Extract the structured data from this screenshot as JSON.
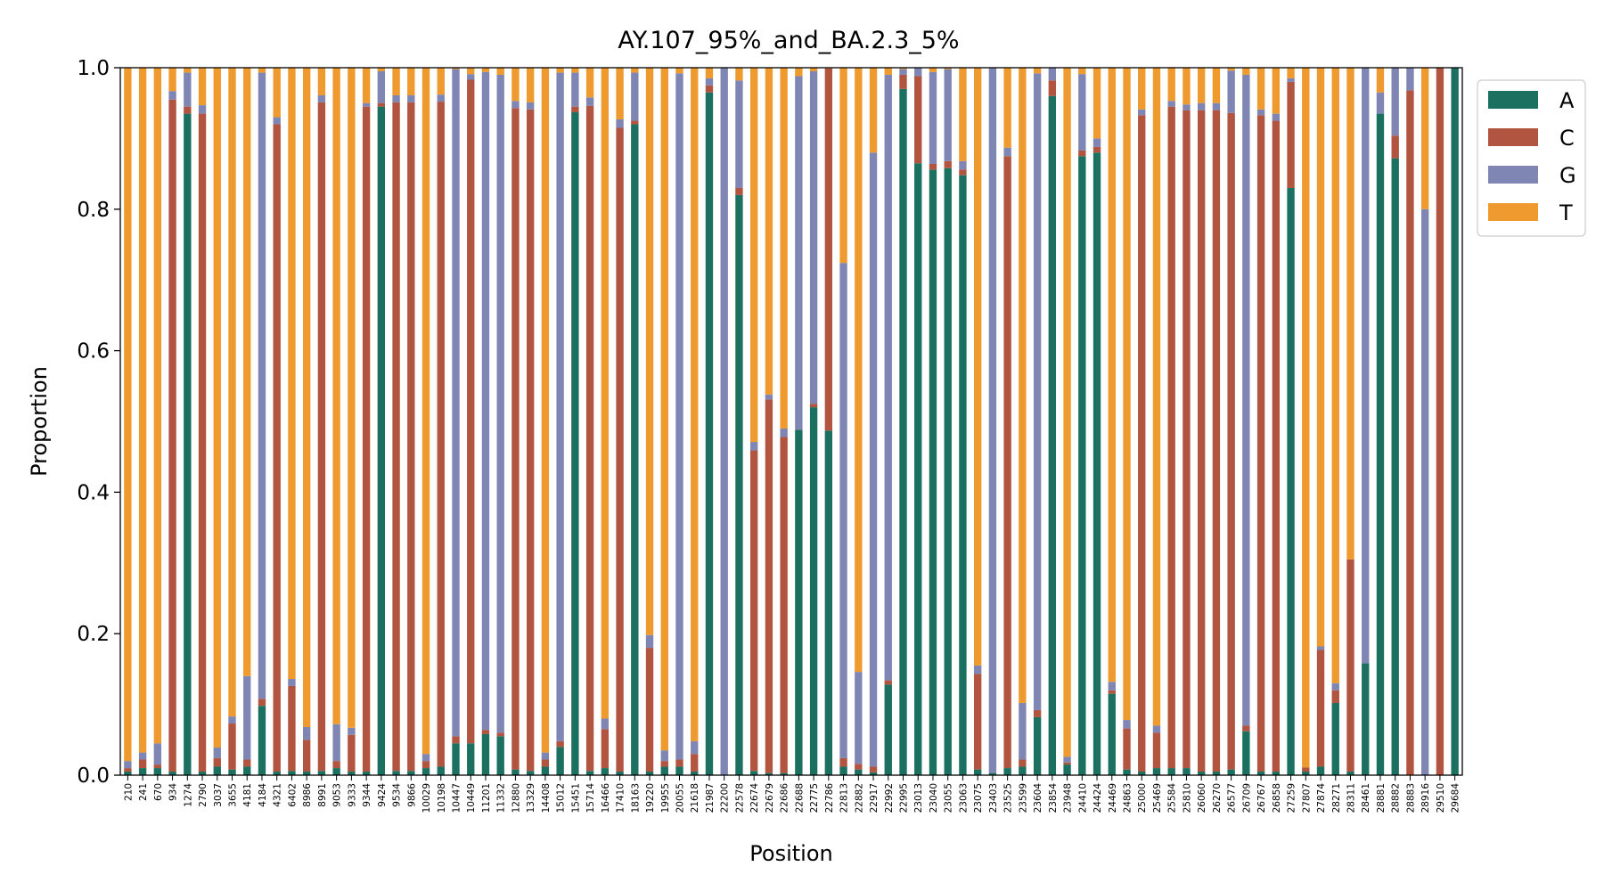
{
  "chart_data": {
    "type": "bar",
    "stacked": true,
    "title": "AY.107_95%_and_BA.2.3_5%",
    "xlabel": "Position",
    "ylabel": "Proportion",
    "ylim": [
      0,
      1
    ],
    "yticks": [
      "0.0",
      "0.2",
      "0.4",
      "0.6",
      "0.8",
      "1.0"
    ],
    "legend_position": "outside-top-right",
    "grid": false,
    "categories": [
      "210",
      "241",
      "670",
      "934",
      "1274",
      "2790",
      "3037",
      "3655",
      "4181",
      "4184",
      "4321",
      "6402",
      "8986",
      "8991",
      "9053",
      "9333",
      "9344",
      "9424",
      "9534",
      "9866",
      "10029",
      "10198",
      "10447",
      "10449",
      "11201",
      "11332",
      "12880",
      "13329",
      "14408",
      "15012",
      "15451",
      "15714",
      "16466",
      "17410",
      "18163",
      "19220",
      "19955",
      "20055",
      "21618",
      "21987",
      "22200",
      "22578",
      "22674",
      "22679",
      "22686",
      "22688",
      "22775",
      "22786",
      "22813",
      "22882",
      "22917",
      "22992",
      "22995",
      "23013",
      "23040",
      "23055",
      "23063",
      "23075",
      "23403",
      "23525",
      "23599",
      "23604",
      "23854",
      "23948",
      "24410",
      "24424",
      "24469",
      "24863",
      "25000",
      "25469",
      "25584",
      "25810",
      "26060",
      "26270",
      "26577",
      "26709",
      "26767",
      "26858",
      "27259",
      "27807",
      "27874",
      "28271",
      "28311",
      "28461",
      "28881",
      "28882",
      "28883",
      "28916",
      "29510",
      "29684"
    ],
    "series": [
      {
        "name": "A",
        "color": "#1b7060",
        "values": [
          0.005,
          0.01,
          0.01,
          0.005,
          0.935,
          0.005,
          0.012,
          0.008,
          0.012,
          0.098,
          0.005,
          0.006,
          0.005,
          0.006,
          0.01,
          0.005,
          0.005,
          0.945,
          0.006,
          0.006,
          0.01,
          0.012,
          0.045,
          0.045,
          0.058,
          0.055,
          0.008,
          0.006,
          0.012,
          0.04,
          0.937,
          0.006,
          0.01,
          0.005,
          0.92,
          0.005,
          0.012,
          0.012,
          0.005,
          0.965,
          0.0,
          0.82,
          0.006,
          0.003,
          0.003,
          0.488,
          0.52,
          0.487,
          0.012,
          0.008,
          0.004,
          0.128,
          0.97,
          0.865,
          0.856,
          0.858,
          0.848,
          0.008,
          0.003,
          0.01,
          0.012,
          0.082,
          0.96,
          0.015,
          0.875,
          0.88,
          0.115,
          0.008,
          0.005,
          0.01,
          0.01,
          0.01,
          0.005,
          0.005,
          0.008,
          0.062,
          0.005,
          0.005,
          0.83,
          0.005,
          0.012,
          0.102,
          0.005,
          0.158,
          0.935,
          0.872,
          0.0,
          0.0,
          0.0,
          1.0
        ]
      },
      {
        "name": "C",
        "color": "#b15440",
        "values": [
          0.005,
          0.012,
          0.005,
          0.95,
          0.01,
          0.93,
          0.012,
          0.065,
          0.01,
          0.01,
          0.915,
          0.12,
          0.045,
          0.945,
          0.01,
          0.052,
          0.94,
          0.005,
          0.945,
          0.945,
          0.01,
          0.94,
          0.01,
          0.938,
          0.006,
          0.005,
          0.935,
          0.935,
          0.01,
          0.008,
          0.008,
          0.94,
          0.055,
          0.91,
          0.005,
          0.175,
          0.008,
          0.01,
          0.025,
          0.01,
          0.0,
          0.01,
          0.453,
          0.528,
          0.475,
          0.0,
          0.005,
          0.512,
          0.012,
          0.008,
          0.008,
          0.006,
          0.02,
          0.123,
          0.008,
          0.01,
          0.008,
          0.135,
          0.0,
          0.865,
          0.01,
          0.01,
          0.022,
          0.003,
          0.008,
          0.008,
          0.005,
          0.058,
          0.928,
          0.05,
          0.935,
          0.93,
          0.935,
          0.935,
          0.928,
          0.008,
          0.928,
          0.92,
          0.15,
          0.006,
          0.165,
          0.018,
          0.3,
          0.0,
          0.0,
          0.032,
          0.968,
          0.0,
          1.0,
          0.0
        ]
      },
      {
        "name": "G",
        "color": "#8086b3",
        "values": [
          0.01,
          0.01,
          0.03,
          0.012,
          0.048,
          0.012,
          0.015,
          0.01,
          0.118,
          0.885,
          0.01,
          0.01,
          0.018,
          0.01,
          0.052,
          0.01,
          0.005,
          0.045,
          0.01,
          0.01,
          0.01,
          0.01,
          0.943,
          0.008,
          0.93,
          0.93,
          0.01,
          0.01,
          0.01,
          0.945,
          0.048,
          0.012,
          0.015,
          0.012,
          0.068,
          0.018,
          0.015,
          0.97,
          0.018,
          0.01,
          1.0,
          0.152,
          0.012,
          0.007,
          0.012,
          0.5,
          0.47,
          0.0,
          0.7,
          0.13,
          0.868,
          0.856,
          0.008,
          0.012,
          0.13,
          0.13,
          0.012,
          0.012,
          0.997,
          0.012,
          0.08,
          0.9,
          0.018,
          0.008,
          0.108,
          0.012,
          0.012,
          0.012,
          0.008,
          0.01,
          0.008,
          0.008,
          0.01,
          0.01,
          0.06,
          0.92,
          0.008,
          0.01,
          0.005,
          0.0,
          0.005,
          0.01,
          0.0,
          0.842,
          0.03,
          0.096,
          0.032,
          0.8,
          0.0,
          0.0
        ]
      },
      {
        "name": "T",
        "color": "#ee9a2f",
        "values": [
          0.98,
          0.968,
          0.955,
          0.033,
          0.007,
          0.053,
          0.961,
          0.917,
          0.86,
          0.007,
          0.07,
          0.864,
          0.932,
          0.039,
          0.928,
          0.933,
          0.05,
          0.005,
          0.039,
          0.039,
          0.97,
          0.038,
          0.002,
          0.009,
          0.006,
          0.01,
          0.047,
          0.049,
          0.968,
          0.007,
          0.007,
          0.042,
          0.92,
          0.073,
          0.007,
          0.802,
          0.965,
          0.008,
          0.952,
          0.015,
          0.0,
          0.018,
          0.529,
          0.462,
          0.51,
          0.012,
          0.005,
          0.001,
          0.276,
          0.854,
          0.12,
          0.01,
          0.002,
          0.0,
          0.006,
          0.002,
          0.132,
          0.845,
          0.0,
          0.113,
          0.898,
          0.008,
          0.0,
          0.974,
          0.009,
          0.1,
          0.868,
          0.922,
          0.059,
          0.93,
          0.047,
          0.052,
          0.05,
          0.05,
          0.004,
          0.01,
          0.059,
          0.065,
          0.015,
          0.989,
          0.818,
          0.87,
          0.695,
          0.0,
          0.035,
          0.0,
          0.0,
          0.2,
          0.0,
          0.0
        ]
      }
    ]
  }
}
